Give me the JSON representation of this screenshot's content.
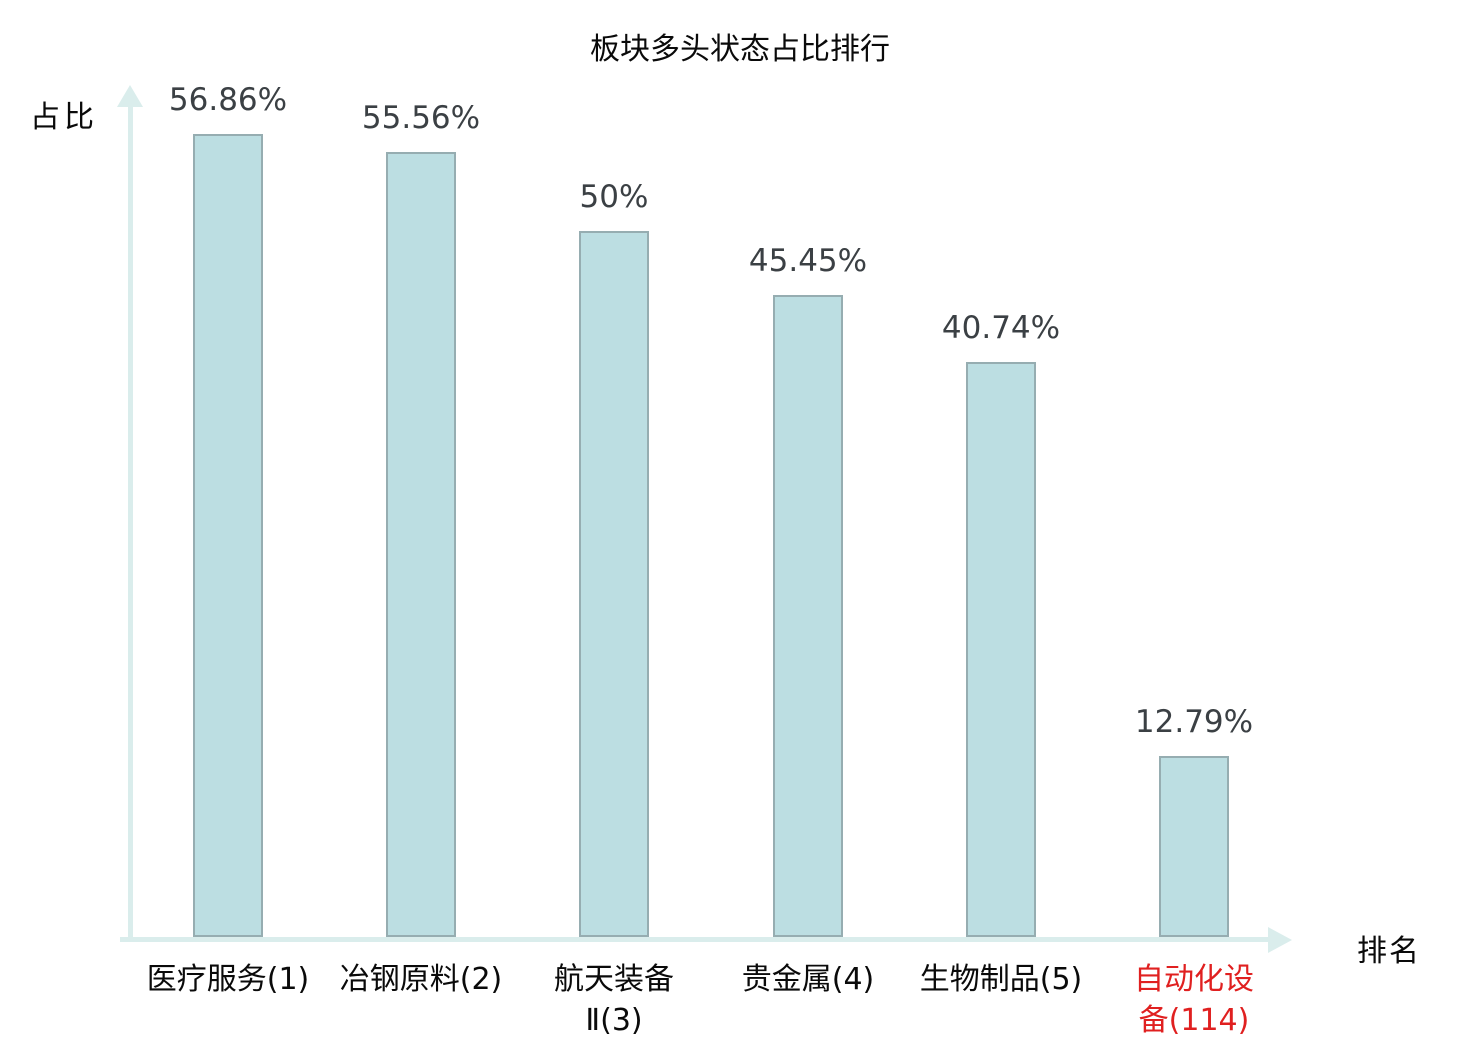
{
  "chart_data": {
    "type": "bar",
    "title": "板块多头状态占比排行",
    "xlabel": "排名",
    "ylabel": "占比",
    "categories": [
      "医疗服务(1)",
      "冶钢原料(2)",
      "航天装备Ⅱ(3)",
      "贵金属(4)",
      "生物制品(5)",
      "自动化设备(114)"
    ],
    "category_lines": [
      [
        "医疗服务(1)"
      ],
      [
        "冶钢原料(2)"
      ],
      [
        "航天装备",
        "Ⅱ(3)"
      ],
      [
        "贵金属(4)"
      ],
      [
        "生物制品(5)"
      ],
      [
        "自动化设",
        "备(114)"
      ]
    ],
    "values": [
      56.86,
      55.56,
      50,
      45.45,
      40.74,
      12.79
    ],
    "value_labels": [
      "56.86%",
      "55.56%",
      "50%",
      "45.45%",
      "40.74%",
      "12.79%"
    ],
    "highlighted_category_index": 5,
    "ylim": [
      0,
      60
    ],
    "grid": false,
    "legend": null,
    "colors": {
      "bar_fill": "#bcdee2",
      "bar_border": "#96adb1",
      "axis": "#daedec",
      "value_label": "#3b4044",
      "category_label": "#0a0a0a",
      "highlight_label": "#e02020",
      "title": "#0a0a0a",
      "background": "#ffffff"
    }
  }
}
